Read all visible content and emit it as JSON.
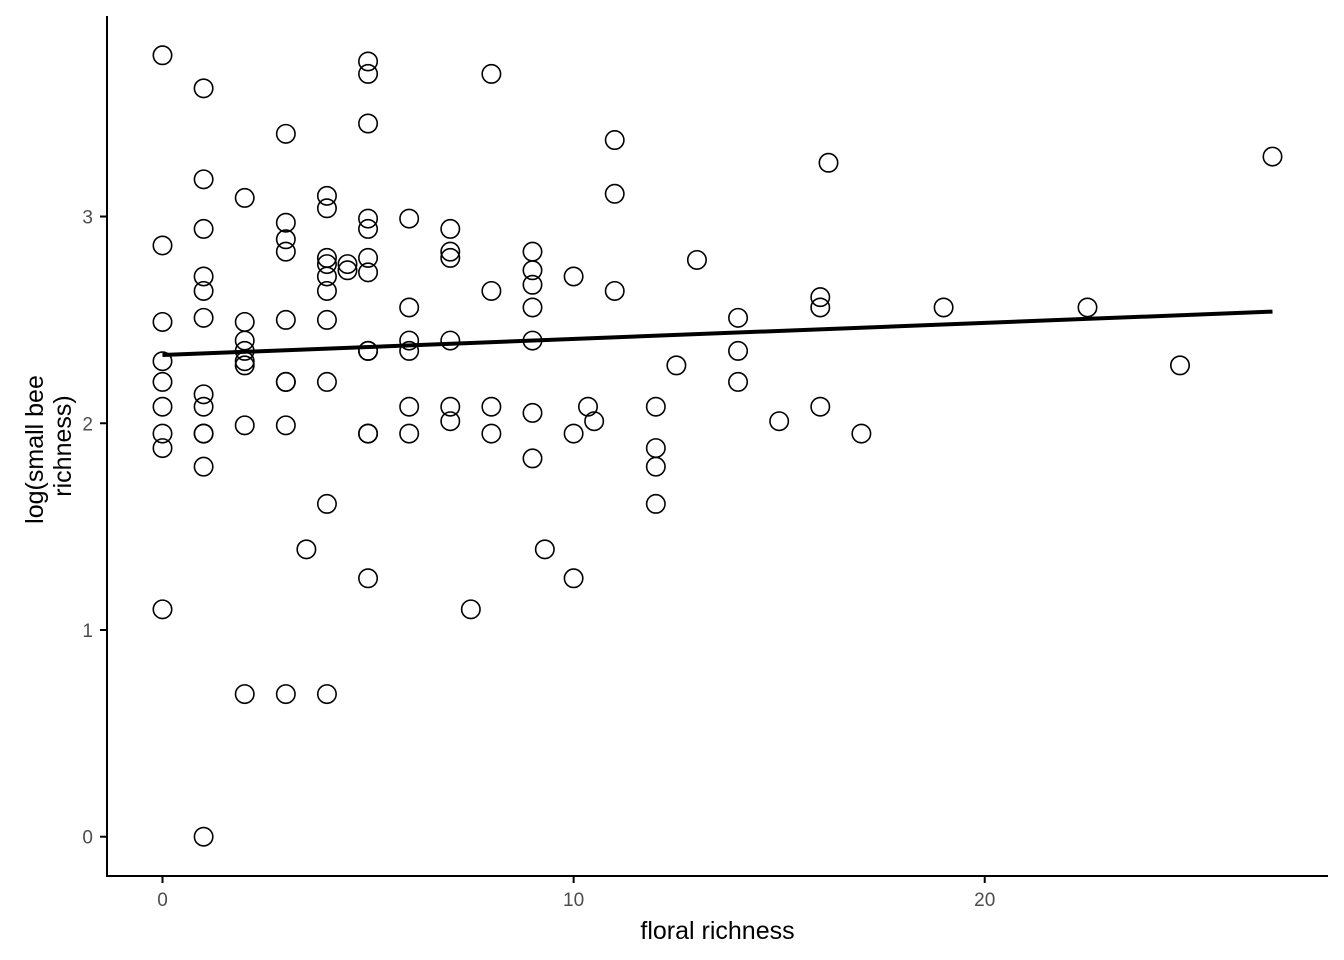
{
  "chart_data": {
    "type": "scatter",
    "title": "",
    "xlabel": "floral richness",
    "ylabel_lines": [
      "log(small bee",
      "richness)"
    ],
    "xlim": [
      -1.35,
      28.35
    ],
    "ylim": [
      -0.19,
      3.97
    ],
    "x_ticks": [
      0,
      10,
      20
    ],
    "y_ticks": [
      0,
      1,
      2,
      3
    ],
    "x_tick_labels": [
      "0",
      "10",
      "20"
    ],
    "y_tick_labels": [
      "0",
      "1",
      "2",
      "3"
    ],
    "grid": false,
    "legend": "none",
    "colors": {
      "point_stroke": "#000000",
      "line": "#000000",
      "axis": "#000000",
      "tick_text": "#4d4d4d"
    },
    "trend_line": {
      "x": [
        0,
        27
      ],
      "y": [
        2.33,
        2.54
      ]
    },
    "points": [
      [
        0,
        3.78
      ],
      [
        0,
        2.86
      ],
      [
        0,
        2.49
      ],
      [
        0,
        2.3
      ],
      [
        0,
        2.2
      ],
      [
        0,
        2.08
      ],
      [
        0,
        1.95
      ],
      [
        0,
        1.88
      ],
      [
        0,
        1.1
      ],
      [
        1,
        3.62
      ],
      [
        1,
        3.18
      ],
      [
        1,
        2.94
      ],
      [
        1,
        2.71
      ],
      [
        1,
        2.64
      ],
      [
        1,
        2.51
      ],
      [
        1,
        2.14
      ],
      [
        1,
        2.08
      ],
      [
        1,
        1.95
      ],
      [
        1,
        1.95
      ],
      [
        1,
        1.79
      ],
      [
        1,
        0.0
      ],
      [
        2,
        3.09
      ],
      [
        2,
        2.49
      ],
      [
        2,
        2.4
      ],
      [
        2,
        2.35
      ],
      [
        2,
        2.3
      ],
      [
        2,
        2.28
      ],
      [
        2,
        1.99
      ],
      [
        2,
        0.69
      ],
      [
        3,
        3.4
      ],
      [
        3,
        2.97
      ],
      [
        3,
        2.89
      ],
      [
        3,
        2.83
      ],
      [
        3,
        2.5
      ],
      [
        3,
        2.2
      ],
      [
        3,
        2.2
      ],
      [
        3,
        1.99
      ],
      [
        3,
        0.69
      ],
      [
        3.5,
        1.39
      ],
      [
        4,
        3.1
      ],
      [
        4,
        3.04
      ],
      [
        4,
        2.8
      ],
      [
        4,
        2.77
      ],
      [
        4,
        2.71
      ],
      [
        4,
        2.64
      ],
      [
        4,
        2.5
      ],
      [
        4,
        2.2
      ],
      [
        4,
        1.61
      ],
      [
        4,
        0.69
      ],
      [
        4.5,
        2.77
      ],
      [
        4.5,
        2.74
      ],
      [
        5,
        3.75
      ],
      [
        5,
        3.69
      ],
      [
        5,
        3.45
      ],
      [
        5,
        2.99
      ],
      [
        5,
        2.94
      ],
      [
        5,
        2.8
      ],
      [
        5,
        2.73
      ],
      [
        5,
        2.35
      ],
      [
        5,
        2.35
      ],
      [
        5,
        1.95
      ],
      [
        5,
        1.95
      ],
      [
        5,
        1.25
      ],
      [
        6,
        2.99
      ],
      [
        6,
        2.56
      ],
      [
        6,
        2.4
      ],
      [
        6,
        2.35
      ],
      [
        6,
        2.08
      ],
      [
        6,
        1.95
      ],
      [
        7,
        2.94
      ],
      [
        7,
        2.83
      ],
      [
        7,
        2.8
      ],
      [
        7,
        2.4
      ],
      [
        7,
        2.08
      ],
      [
        7,
        2.01
      ],
      [
        7.5,
        1.1
      ],
      [
        8,
        3.69
      ],
      [
        8,
        2.64
      ],
      [
        8,
        2.08
      ],
      [
        8,
        1.95
      ],
      [
        9,
        2.83
      ],
      [
        9,
        2.74
      ],
      [
        9,
        2.67
      ],
      [
        9,
        2.56
      ],
      [
        9,
        2.4
      ],
      [
        9,
        2.05
      ],
      [
        9,
        1.83
      ],
      [
        9.3,
        1.39
      ],
      [
        10,
        2.71
      ],
      [
        10,
        1.95
      ],
      [
        10,
        1.25
      ],
      [
        10.35,
        2.08
      ],
      [
        10.5,
        2.01
      ],
      [
        11,
        3.37
      ],
      [
        11,
        3.11
      ],
      [
        11,
        2.64
      ],
      [
        12,
        2.08
      ],
      [
        12,
        1.88
      ],
      [
        12,
        1.79
      ],
      [
        12,
        1.61
      ],
      [
        12.5,
        2.28
      ],
      [
        13,
        2.79
      ],
      [
        14,
        2.51
      ],
      [
        14,
        2.35
      ],
      [
        14,
        2.2
      ],
      [
        15,
        2.01
      ],
      [
        16,
        2.61
      ],
      [
        16,
        2.56
      ],
      [
        16,
        2.08
      ],
      [
        16.2,
        3.26
      ],
      [
        17,
        1.95
      ],
      [
        19,
        2.56
      ],
      [
        22.5,
        2.56
      ],
      [
        24.75,
        2.28
      ],
      [
        27,
        3.29
      ]
    ]
  }
}
